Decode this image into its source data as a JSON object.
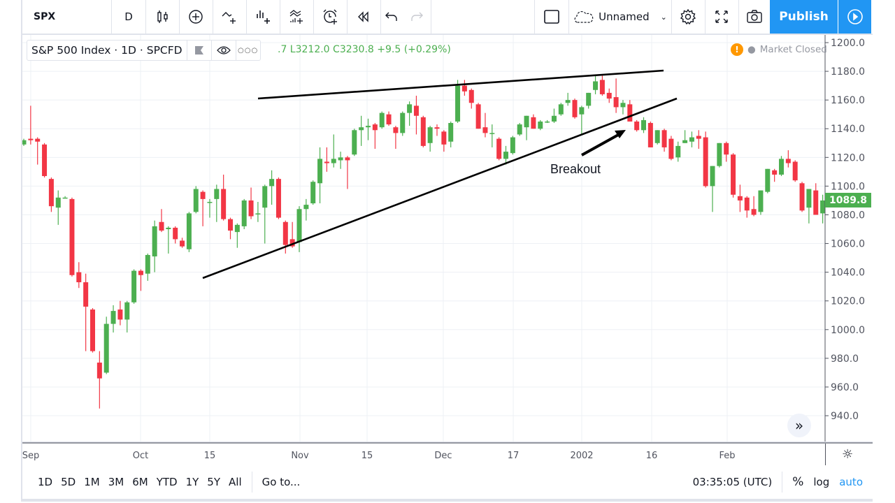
{
  "toolbar": {
    "symbol": "SPX",
    "interval": "D",
    "layout_name": "Unnamed",
    "publish_label": "Publish",
    "icons": [
      "candles-icon",
      "add-symbol-icon",
      "indicators-icon",
      "financials-icon",
      "compare-icon",
      "alert-icon",
      "replay-icon",
      "undo-icon",
      "redo-icon",
      "drawing-square-icon",
      "cloud-icon",
      "gear-icon",
      "fullscreen-icon",
      "camera-icon",
      "play-icon"
    ]
  },
  "legend": {
    "title": "S&P 500 Index · 1D · SPCFD",
    "ohlc_text": ".7  L3212.0  C3230.8  +9.5 (+0.29%)"
  },
  "status": {
    "market": "Market Closed",
    "warn_glyph": "!"
  },
  "annotation": {
    "breakout_label": "Breakout"
  },
  "price_label": "1089.8",
  "colors": {
    "up": "#4caf50",
    "down": "#f23645",
    "accent": "#2196f3"
  },
  "bottom": {
    "ranges": [
      "1D",
      "5D",
      "1M",
      "3M",
      "6M",
      "YTD",
      "1Y",
      "5Y",
      "All"
    ],
    "goto": "Go to...",
    "time": "03:35:05 (UTC)",
    "percent": "%",
    "log": "log",
    "auto": "auto"
  },
  "chart_data": {
    "type": "candlestick",
    "title": "S&P 500 Index · 1D",
    "ylim": [
      920,
      1210
    ],
    "yticks": [
      1200,
      1180,
      1160,
      1140,
      1120,
      1100,
      1080,
      1060,
      1040,
      1020,
      1000,
      980,
      960,
      940
    ],
    "xticks": [
      "Sep",
      "Oct",
      "15",
      "Nov",
      "15",
      "Dec",
      "17",
      "2002",
      "16",
      "Feb"
    ],
    "ohlc": [
      [
        1129,
        1133,
        1128,
        1132
      ],
      [
        1133,
        1156,
        1129,
        1132
      ],
      [
        1133,
        1134,
        1115,
        1131
      ],
      [
        1129,
        1130,
        1106,
        1107
      ],
      [
        1105,
        1106,
        1082,
        1086
      ],
      [
        1085,
        1097,
        1073,
        1092
      ],
      [
        1092,
        1093,
        1092,
        1092
      ],
      [
        1091,
        1092,
        1037,
        1038
      ],
      [
        1040,
        1047,
        1029,
        1033
      ],
      [
        1033,
        1039,
        985,
        1016
      ],
      [
        1014,
        1015,
        984,
        985
      ],
      [
        977,
        985,
        945,
        966
      ],
      [
        970,
        1009,
        969,
        1004
      ],
      [
        1004,
        1017,
        998,
        1013
      ],
      [
        1014,
        1020,
        1003,
        1007
      ],
      [
        1007,
        1020,
        998,
        1019
      ],
      [
        1019,
        1042,
        1018,
        1041
      ],
      [
        1041,
        1042,
        1027,
        1038
      ],
      [
        1039,
        1053,
        1034,
        1052
      ],
      [
        1051,
        1076,
        1040,
        1072
      ],
      [
        1075,
        1084,
        1068,
        1069
      ],
      [
        1070,
        1072,
        1053,
        1071
      ],
      [
        1071,
        1072,
        1060,
        1063
      ],
      [
        1062,
        1064,
        1057,
        1058
      ],
      [
        1056,
        1082,
        1054,
        1081
      ],
      [
        1082,
        1100,
        1081,
        1098
      ],
      [
        1096,
        1097,
        1072,
        1091
      ],
      [
        1089,
        1091,
        1078,
        1089
      ],
      [
        1091,
        1101,
        1075,
        1098
      ],
      [
        1098,
        1108,
        1076,
        1077
      ],
      [
        1077,
        1078,
        1063,
        1069
      ],
      [
        1068,
        1074,
        1057,
        1073
      ],
      [
        1072,
        1091,
        1070,
        1090
      ],
      [
        1090,
        1099,
        1077,
        1079
      ],
      [
        1081,
        1089,
        1075,
        1081
      ],
      [
        1085,
        1101,
        1060,
        1100
      ],
      [
        1100,
        1111,
        1087,
        1105
      ],
      [
        1105,
        1106,
        1077,
        1078
      ],
      [
        1075,
        1076,
        1053,
        1059
      ],
      [
        1063,
        1075,
        1057,
        1058
      ],
      [
        1061,
        1086,
        1054,
        1084
      ],
      [
        1084,
        1091,
        1076,
        1087
      ],
      [
        1088,
        1104,
        1087,
        1103
      ],
      [
        1102,
        1127,
        1088,
        1119
      ],
      [
        1117,
        1127,
        1110,
        1116
      ],
      [
        1116,
        1136,
        1113,
        1119
      ],
      [
        1118,
        1124,
        1112,
        1120
      ],
      [
        1120,
        1121,
        1098,
        1118
      ],
      [
        1122,
        1140,
        1121,
        1139
      ],
      [
        1139,
        1149,
        1128,
        1141
      ],
      [
        1141,
        1147,
        1132,
        1142
      ],
      [
        1143,
        1144,
        1126,
        1139
      ],
      [
        1141,
        1152,
        1140,
        1151
      ],
      [
        1150,
        1152,
        1142,
        1143
      ],
      [
        1141,
        1142,
        1126,
        1137
      ],
      [
        1137,
        1152,
        1135,
        1151
      ],
      [
        1151,
        1159,
        1142,
        1157
      ],
      [
        1156,
        1163,
        1136,
        1149
      ],
      [
        1148,
        1149,
        1127,
        1128
      ],
      [
        1130,
        1142,
        1124,
        1141
      ],
      [
        1141,
        1143,
        1135,
        1140
      ],
      [
        1138,
        1139,
        1124,
        1129
      ],
      [
        1131,
        1145,
        1127,
        1144
      ],
      [
        1145,
        1174,
        1144,
        1170
      ],
      [
        1170,
        1174,
        1163,
        1166
      ],
      [
        1167,
        1168,
        1154,
        1158
      ],
      [
        1157,
        1158,
        1140,
        1140
      ],
      [
        1141,
        1151,
        1134,
        1137
      ],
      [
        1137,
        1143,
        1127,
        1137
      ],
      [
        1133,
        1134,
        1118,
        1119
      ],
      [
        1119,
        1128,
        1115,
        1124
      ],
      [
        1123,
        1135,
        1122,
        1134
      ],
      [
        1136,
        1144,
        1135,
        1143
      ],
      [
        1141,
        1149,
        1132,
        1149
      ],
      [
        1148,
        1150,
        1140,
        1140
      ],
      [
        1140,
        1146,
        1139,
        1145
      ],
      [
        1145,
        1146,
        1144,
        1145
      ],
      [
        1145,
        1154,
        1144,
        1149
      ],
      [
        1150,
        1158,
        1149,
        1157
      ],
      [
        1158,
        1165,
        1156,
        1160
      ],
      [
        1160,
        1161,
        1147,
        1148
      ],
      [
        1150,
        1156,
        1136,
        1155
      ],
      [
        1156,
        1165,
        1154,
        1165
      ],
      [
        1167,
        1177,
        1164,
        1173
      ],
      [
        1174,
        1177,
        1163,
        1164
      ],
      [
        1165,
        1168,
        1158,
        1161
      ],
      [
        1162,
        1175,
        1151,
        1155
      ],
      [
        1155,
        1160,
        1150,
        1158
      ],
      [
        1157,
        1160,
        1145,
        1145
      ],
      [
        1145,
        1146,
        1138,
        1139
      ],
      [
        1139,
        1148,
        1137,
        1146
      ],
      [
        1144,
        1145,
        1127,
        1127
      ],
      [
        1130,
        1139,
        1129,
        1139
      ],
      [
        1139,
        1140,
        1124,
        1127
      ],
      [
        1133,
        1135,
        1118,
        1119
      ],
      [
        1120,
        1131,
        1117,
        1128
      ],
      [
        1130,
        1139,
        1130,
        1132
      ],
      [
        1131,
        1138,
        1127,
        1134
      ],
      [
        1135,
        1139,
        1126,
        1133
      ],
      [
        1134,
        1138,
        1099,
        1100
      ],
      [
        1100,
        1114,
        1082,
        1114
      ],
      [
        1114,
        1130,
        1113,
        1130
      ],
      [
        1130,
        1131,
        1117,
        1122
      ],
      [
        1122,
        1123,
        1092,
        1094
      ],
      [
        1093,
        1101,
        1082,
        1090
      ],
      [
        1092,
        1093,
        1078,
        1083
      ],
      [
        1084,
        1093,
        1079,
        1080
      ],
      [
        1082,
        1097,
        1080,
        1097
      ],
      [
        1096,
        1112,
        1095,
        1112
      ],
      [
        1111,
        1112,
        1103,
        1108
      ],
      [
        1108,
        1121,
        1107,
        1119
      ],
      [
        1119,
        1125,
        1113,
        1116
      ],
      [
        1117,
        1118,
        1103,
        1104
      ],
      [
        1102,
        1103,
        1082,
        1083
      ],
      [
        1085,
        1098,
        1074,
        1098
      ],
      [
        1097,
        1102,
        1080,
        1080
      ],
      [
        1081,
        1094,
        1074,
        1090
      ]
    ],
    "last_price": 1089.8
  }
}
